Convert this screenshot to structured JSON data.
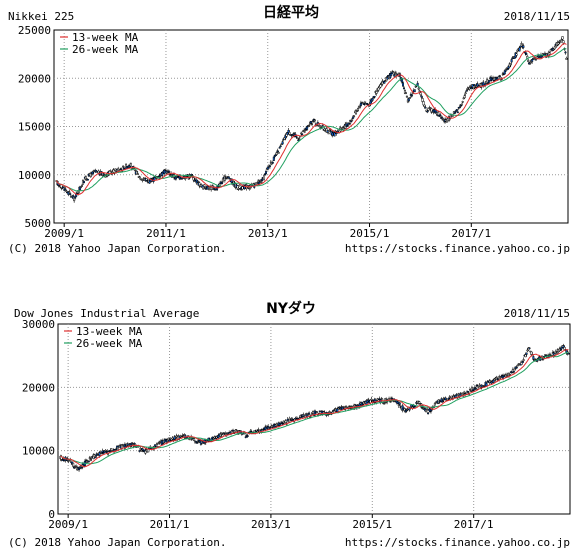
{
  "chart_data": [
    {
      "type": "candlestick",
      "title": "日経平均",
      "series_name": "Nikkei 225",
      "date": "2018/11/15",
      "copyright": "(C) 2018 Yahoo Japan Corporation.",
      "url": "https://stocks.finance.yahoo.co.jp",
      "ylim": [
        5000,
        25000
      ],
      "y_ticks": [
        "5000",
        "10000",
        "15000",
        "20000",
        "25000"
      ],
      "y_tick_values": [
        5000,
        10000,
        15000,
        20000,
        25000
      ],
      "x_ticks": [
        "2009/1",
        "2011/1",
        "2013/1",
        "2015/1",
        "2017/1"
      ],
      "x_tick_values": [
        2009.0,
        2011.0,
        2013.0,
        2015.0,
        2017.0
      ],
      "xlim": [
        2008.8,
        2018.9
      ],
      "grid": true,
      "legend": {
        "position": "top-left",
        "items": [
          "13-week MA",
          "26-week MA"
        ]
      },
      "colors": {
        "up": "#ffffff",
        "down": "#1060d0",
        "ma13": "#e03030",
        "ma26": "#20a060"
      },
      "price_path": [
        [
          2008.85,
          9200
        ],
        [
          2009.0,
          8600
        ],
        [
          2009.2,
          7500
        ],
        [
          2009.4,
          9500
        ],
        [
          2009.6,
          10300
        ],
        [
          2009.8,
          10000
        ],
        [
          2010.0,
          10400
        ],
        [
          2010.3,
          11000
        ],
        [
          2010.5,
          9700
        ],
        [
          2010.7,
          9300
        ],
        [
          2011.0,
          10400
        ],
        [
          2011.2,
          9700
        ],
        [
          2011.5,
          9900
        ],
        [
          2011.7,
          8800
        ],
        [
          2012.0,
          8600
        ],
        [
          2012.2,
          9900
        ],
        [
          2012.4,
          8700
        ],
        [
          2012.7,
          8800
        ],
        [
          2012.9,
          9400
        ],
        [
          2013.0,
          10700
        ],
        [
          2013.2,
          12300
        ],
        [
          2013.4,
          14500
        ],
        [
          2013.6,
          13800
        ],
        [
          2013.9,
          15600
        ],
        [
          2014.1,
          14800
        ],
        [
          2014.3,
          14200
        ],
        [
          2014.6,
          15300
        ],
        [
          2014.85,
          17500
        ],
        [
          2015.0,
          17300
        ],
        [
          2015.2,
          19200
        ],
        [
          2015.45,
          20500
        ],
        [
          2015.6,
          20300
        ],
        [
          2015.75,
          17700
        ],
        [
          2015.95,
          19300
        ],
        [
          2016.1,
          16800
        ],
        [
          2016.3,
          16600
        ],
        [
          2016.5,
          15500
        ],
        [
          2016.75,
          16800
        ],
        [
          2016.95,
          19100
        ],
        [
          2017.2,
          19300
        ],
        [
          2017.4,
          19900
        ],
        [
          2017.6,
          20100
        ],
        [
          2017.8,
          21800
        ],
        [
          2018.0,
          23500
        ],
        [
          2018.15,
          21500
        ],
        [
          2018.3,
          22300
        ],
        [
          2018.5,
          22400
        ],
        [
          2018.7,
          23600
        ],
        [
          2018.8,
          24200
        ],
        [
          2018.88,
          21800
        ]
      ]
    },
    {
      "type": "candlestick",
      "title": "NYダウ",
      "series_name": "Dow Jones Industrial Average",
      "date": "2018/11/15",
      "copyright": "(C) 2018 Yahoo Japan Corporation.",
      "url": "https://stocks.finance.yahoo.co.jp",
      "ylim": [
        0,
        30000
      ],
      "y_ticks": [
        "0",
        "10000",
        "20000",
        "30000"
      ],
      "y_tick_values": [
        0,
        10000,
        20000,
        30000
      ],
      "x_ticks": [
        "2009/1",
        "2011/1",
        "2013/1",
        "2015/1",
        "2017/1"
      ],
      "x_tick_values": [
        2009.0,
        2011.0,
        2013.0,
        2015.0,
        2017.0
      ],
      "xlim": [
        2008.8,
        2018.9
      ],
      "grid": true,
      "legend": {
        "position": "top-left",
        "items": [
          "13-week MA",
          "26-week MA"
        ]
      },
      "colors": {
        "up": "#ffffff",
        "down": "#1060d0",
        "ma13": "#e03030",
        "ma26": "#20a060"
      },
      "price_path": [
        [
          2008.85,
          8800
        ],
        [
          2009.0,
          8700
        ],
        [
          2009.2,
          7000
        ],
        [
          2009.4,
          8500
        ],
        [
          2009.6,
          9500
        ],
        [
          2009.8,
          9900
        ],
        [
          2010.0,
          10500
        ],
        [
          2010.3,
          11000
        ],
        [
          2010.5,
          9800
        ],
        [
          2010.8,
          11100
        ],
        [
          2011.0,
          11700
        ],
        [
          2011.3,
          12400
        ],
        [
          2011.6,
          11300
        ],
        [
          2011.8,
          11800
        ],
        [
          2012.0,
          12400
        ],
        [
          2012.3,
          13100
        ],
        [
          2012.5,
          12500
        ],
        [
          2012.8,
          13200
        ],
        [
          2013.0,
          13800
        ],
        [
          2013.3,
          14600
        ],
        [
          2013.6,
          15400
        ],
        [
          2013.9,
          16000
        ],
        [
          2014.1,
          15800
        ],
        [
          2014.4,
          16700
        ],
        [
          2014.7,
          17000
        ],
        [
          2014.95,
          17800
        ],
        [
          2015.2,
          17900
        ],
        [
          2015.45,
          18100
        ],
        [
          2015.65,
          16300
        ],
        [
          2015.9,
          17600
        ],
        [
          2016.1,
          16100
        ],
        [
          2016.3,
          17700
        ],
        [
          2016.6,
          18400
        ],
        [
          2016.85,
          19000
        ],
        [
          2017.0,
          19800
        ],
        [
          2017.3,
          20700
        ],
        [
          2017.5,
          21400
        ],
        [
          2017.7,
          22000
        ],
        [
          2017.95,
          24000
        ],
        [
          2018.1,
          26200
        ],
        [
          2018.2,
          24300
        ],
        [
          2018.4,
          24800
        ],
        [
          2018.6,
          25400
        ],
        [
          2018.75,
          26500
        ],
        [
          2018.88,
          25300
        ]
      ]
    }
  ]
}
